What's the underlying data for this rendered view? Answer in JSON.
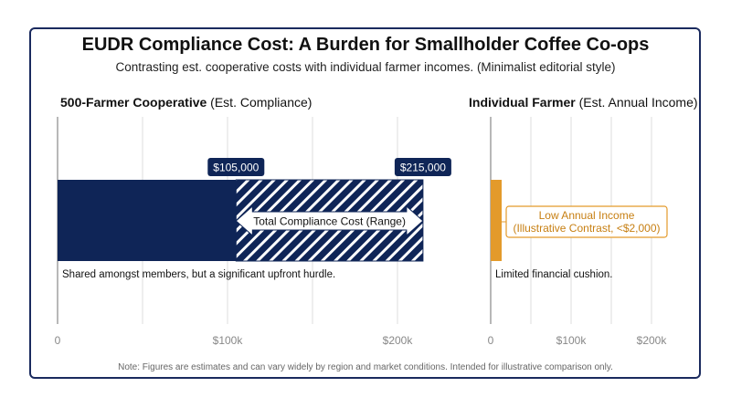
{
  "title": "EUDR Compliance Cost: A Burden for Smallholder Coffee Co-ops",
  "subtitle": "Contrasting est. cooperative costs with individual farmer incomes. (Minimalist editorial style)",
  "note": "Note: Figures are estimates and can vary widely by region and market conditions. Intended for illustrative comparison only.",
  "colors": {
    "navy": "#0f2557",
    "gold": "#e39a2b",
    "frame": "#1a2a5e",
    "grid": "#dcdcdc"
  },
  "chart_data": [
    {
      "type": "bar",
      "title_bold": "500-Farmer Cooperative",
      "title_rest": " (Est. Compliance)",
      "xlim": [
        0,
        220000
      ],
      "ticks": [
        {
          "value": 0,
          "label": "0"
        },
        {
          "value": 100000,
          "label": "$100k"
        },
        {
          "value": 200000,
          "label": "$200k"
        }
      ],
      "grid_values": [
        0,
        50000,
        100000,
        150000,
        200000
      ],
      "bars": [
        {
          "name": "Minimum compliance cost",
          "start": 0,
          "end": 105000,
          "style": "solid"
        },
        {
          "name": "Compliance cost range",
          "start": 105000,
          "end": 215000,
          "style": "hatched"
        }
      ],
      "value_labels": [
        {
          "value": 105000,
          "text": "$105,000"
        },
        {
          "value": 215000,
          "text": "$215,000"
        }
      ],
      "range_annotation": "Total Compliance Cost (Range)",
      "caption": "Shared amongst members, but a significant upfront hurdle."
    },
    {
      "type": "bar",
      "title_bold": "Individual Farmer",
      "title_rest": " (Est. Annual Income)",
      "xlim": [
        0,
        220000
      ],
      "ticks": [
        {
          "value": 0,
          "label": "0"
        },
        {
          "value": 100000,
          "label": "$100k"
        },
        {
          "value": 200000,
          "label": "$200k"
        }
      ],
      "grid_values": [
        0,
        50000,
        100000,
        150000,
        200000
      ],
      "bars": [
        {
          "name": "Low annual income",
          "start": 0,
          "end": 2000,
          "style": "solid"
        }
      ],
      "annotation_line1": "Low Annual Income",
      "annotation_line2": "(Illustrative Contrast, <$2,000)",
      "caption": "Limited financial cushion."
    }
  ]
}
